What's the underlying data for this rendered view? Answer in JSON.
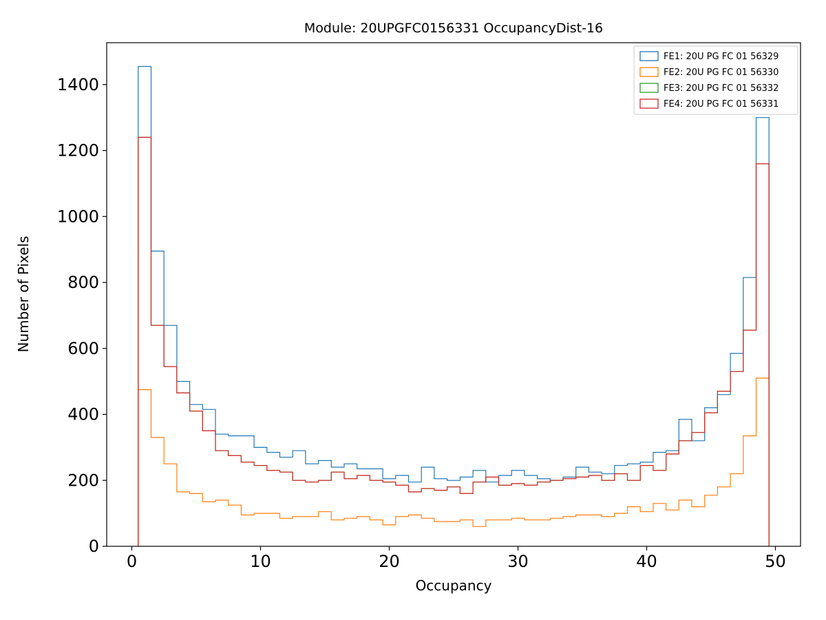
{
  "chart_data": {
    "type": "histogram-step",
    "title": "Module: 20UPGFC0156331 OccupancyDist-16",
    "xlabel": "Occupancy",
    "ylabel": "Number of Pixels",
    "bin_start": 0.5,
    "bin_width": 1,
    "xlim": [
      -1.95,
      51.95
    ],
    "ylim": [
      0,
      1527
    ],
    "xticks": [
      0,
      10,
      20,
      30,
      40,
      50
    ],
    "yticks": [
      0,
      200,
      400,
      600,
      800,
      1000,
      1200,
      1400
    ],
    "grid": false,
    "legend_position": "upper right",
    "series": [
      {
        "name": "FE1: 20U PG FC 01 56329",
        "color": "#1f77b4",
        "values": [
          1455,
          895,
          670,
          500,
          430,
          415,
          340,
          335,
          335,
          300,
          285,
          270,
          290,
          250,
          260,
          240,
          250,
          235,
          235,
          205,
          215,
          195,
          240,
          205,
          200,
          210,
          230,
          195,
          215,
          230,
          215,
          205,
          200,
          210,
          240,
          225,
          220,
          245,
          250,
          255,
          285,
          290,
          385,
          320,
          420,
          460,
          585,
          815,
          1300
        ]
      },
      {
        "name": "FE2: 20U PG FC 01 56330",
        "color": "#ff7f0e",
        "values": [
          475,
          330,
          250,
          165,
          160,
          135,
          140,
          125,
          95,
          100,
          100,
          85,
          90,
          90,
          105,
          80,
          85,
          90,
          80,
          65,
          90,
          95,
          85,
          75,
          75,
          80,
          60,
          80,
          80,
          85,
          80,
          80,
          85,
          90,
          95,
          95,
          90,
          100,
          120,
          105,
          130,
          110,
          140,
          120,
          155,
          180,
          220,
          335,
          510
        ]
      },
      {
        "name": "FE3: 20U PG FC 01 56332",
        "color": "#2ca02c",
        "values": [
          1240,
          670,
          545,
          465,
          410,
          350,
          290,
          275,
          255,
          245,
          230,
          225,
          200,
          195,
          200,
          225,
          205,
          215,
          200,
          195,
          185,
          165,
          175,
          170,
          180,
          160,
          195,
          210,
          185,
          190,
          185,
          195,
          200,
          205,
          210,
          215,
          200,
          220,
          200,
          245,
          230,
          280,
          320,
          345,
          405,
          470,
          530,
          655,
          1160
        ]
      },
      {
        "name": "FE4: 20U PG FC 01 56331",
        "color": "#d62728",
        "values": [
          1240,
          670,
          545,
          465,
          410,
          350,
          290,
          275,
          255,
          245,
          230,
          225,
          200,
          195,
          200,
          225,
          205,
          215,
          200,
          195,
          185,
          165,
          175,
          170,
          180,
          160,
          195,
          210,
          185,
          190,
          185,
          195,
          200,
          205,
          210,
          215,
          200,
          220,
          200,
          245,
          230,
          280,
          320,
          345,
          405,
          470,
          530,
          655,
          1160
        ]
      }
    ]
  }
}
